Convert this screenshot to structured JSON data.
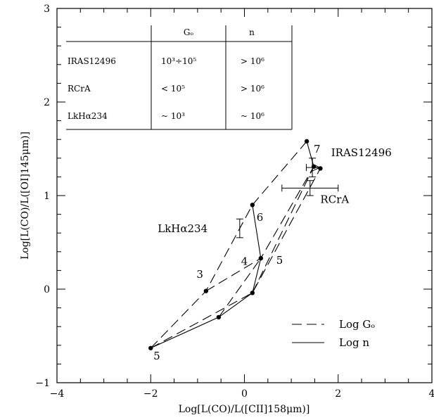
{
  "chart_data": {
    "type": "scatter",
    "title": "",
    "xlabel": "Log[L(CO)/L([CII]158μm)]",
    "ylabel": "Log[L(CO)/L([OI]145μm)]",
    "xlim": [
      -4,
      4
    ],
    "ylim": [
      -1,
      3
    ],
    "xticks": [
      -4,
      -2,
      0,
      2,
      4
    ],
    "yticks": [
      -1,
      0,
      1,
      2,
      3
    ],
    "xtick_labels": [
      "−4",
      "−2",
      "0",
      "2",
      "4"
    ],
    "ytick_labels": [
      "−1",
      "0",
      "1",
      "2",
      "3"
    ],
    "grid": false,
    "model_points": [
      {
        "id": "p1",
        "x": -2.0,
        "y": -0.63
      },
      {
        "id": "p2",
        "x": -0.82,
        "y": -0.02
      },
      {
        "id": "p3",
        "x": -0.55,
        "y": -0.3
      },
      {
        "id": "p4",
        "x": 0.17,
        "y": -0.04
      },
      {
        "id": "p5",
        "x": 0.17,
        "y": 0.9
      },
      {
        "id": "p6",
        "x": 0.35,
        "y": 0.33
      },
      {
        "id": "p7",
        "x": 1.33,
        "y": 1.58
      },
      {
        "id": "p8",
        "x": 1.48,
        "y": 1.31
      },
      {
        "id": "p9",
        "x": 1.62,
        "y": 1.29
      }
    ],
    "series": [
      {
        "name": "Log Gₒ",
        "style": "dashed",
        "segments": [
          [
            [
              -2.0,
              -0.63
            ],
            [
              -0.82,
              -0.02
            ],
            [
              0.17,
              0.9
            ],
            [
              1.33,
              1.58
            ]
          ],
          [
            [
              -0.82,
              -0.02
            ],
            [
              0.35,
              0.33
            ],
            [
              1.48,
              1.31
            ]
          ],
          [
            [
              -2.0,
              -0.63
            ],
            [
              0.17,
              -0.04
            ],
            [
              1.62,
              1.29
            ]
          ],
          [
            [
              -0.55,
              -0.3
            ],
            [
              0.35,
              0.33
            ]
          ],
          [
            [
              0.17,
              -0.04
            ],
            [
              1.48,
              1.31
            ]
          ]
        ]
      },
      {
        "name": "Log n",
        "style": "solid",
        "segments": [
          [
            [
              -2.0,
              -0.63
            ],
            [
              -0.55,
              -0.3
            ],
            [
              0.17,
              -0.04
            ],
            [
              0.35,
              0.33
            ],
            [
              0.17,
              0.9
            ]
          ],
          [
            [
              1.33,
              1.58
            ],
            [
              1.48,
              1.31
            ],
            [
              1.62,
              1.29
            ]
          ]
        ]
      }
    ],
    "annotations": [
      {
        "text": "3",
        "x": -0.95,
        "y": 0.12
      },
      {
        "text": "4",
        "x": 0.0,
        "y": 0.26
      },
      {
        "text": "5",
        "x": 0.75,
        "y": 0.27
      },
      {
        "text": "6",
        "x": 0.33,
        "y": 0.73
      },
      {
        "text": "7",
        "x": 1.55,
        "y": 1.46
      },
      {
        "text": "5",
        "x": -1.87,
        "y": -0.75
      }
    ],
    "observations": [
      {
        "name": "IRAS12496",
        "x": 1.45,
        "y": 1.3,
        "xerr": 0.13,
        "yerr": 0.1,
        "limit": "lower-bound-right",
        "label_x": 1.85,
        "label_y": 1.42
      },
      {
        "name": "RCrA",
        "x": 1.4,
        "y": 1.08,
        "xerr": 0.6,
        "yerr": 0.08,
        "label_x": 1.62,
        "label_y": 0.92
      },
      {
        "name": "LkHα234",
        "x": -0.1,
        "y": 0.65,
        "xerr": 0,
        "yerr": 0.1,
        "label_x": -1.85,
        "label_y": 0.61
      }
    ],
    "legend": {
      "position": "bottom-right",
      "entries": [
        {
          "label": "Log Gₒ",
          "style": "dashed"
        },
        {
          "label": "Log n",
          "style": "solid"
        }
      ]
    },
    "inset_table": {
      "position": "top-left",
      "columns": [
        "",
        "Gₒ",
        "n"
      ],
      "rows": [
        [
          "IRAS12496",
          "10³÷10⁵",
          "> 10⁶"
        ],
        [
          "RCrA",
          "< 10⁵",
          "> 10⁶"
        ],
        [
          "LkHα234",
          "~ 10³",
          "~ 10⁶"
        ]
      ]
    }
  }
}
